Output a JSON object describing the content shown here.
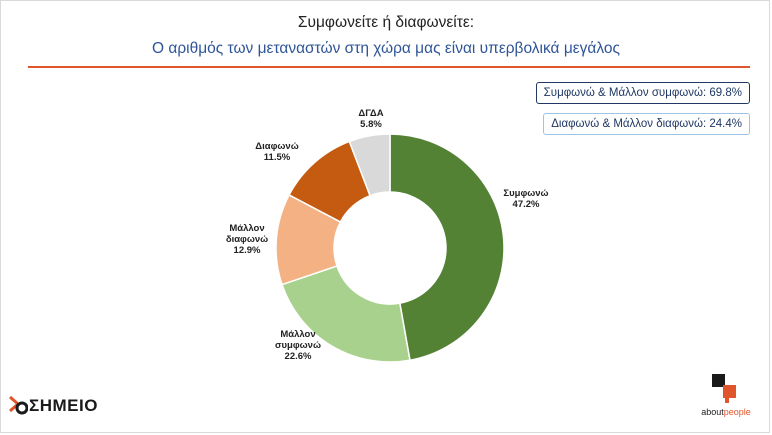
{
  "title": "Συμφωνείτε ή διαφωνείτε:",
  "subtitle": "Ο αριθμός των μεταναστών στη χώρα μας είναι υπερβολικά μεγάλος",
  "summary": {
    "agree": "Συμφωνώ & Μάλλον συμφωνώ: 69.8%",
    "disagree": "Διαφωνώ & Μάλλον διαφωνώ: 24.4%"
  },
  "logos": {
    "left": "ΣΗΜΕΙΟ",
    "right_prefix": "about",
    "right_accent": "people"
  },
  "colors": {
    "accent_rule": "#e0552b",
    "subtitle": "#2f5597"
  },
  "chart_data": {
    "type": "pie",
    "donut": true,
    "title": "Συμφωνείτε ή διαφωνείτε:",
    "subtitle": "Ο αριθμός των μεταναστών στη χώρα μας είναι υπερβολικά μεγάλος",
    "slices": [
      {
        "name": "Συμφωνώ",
        "value": 47.2,
        "label": "47.2%",
        "color": "#548235"
      },
      {
        "name": "Μάλλον συμφωνώ",
        "value": 22.6,
        "label": "22.6%",
        "color": "#a9d18e"
      },
      {
        "name": "Μάλλον διαφωνώ",
        "value": 12.9,
        "label": "12.9%",
        "color": "#f4b183"
      },
      {
        "name": "Διαφωνώ",
        "value": 11.5,
        "label": "11.5%",
        "color": "#c55a11"
      },
      {
        "name": "ΔΓΔΑ",
        "value": 5.8,
        "label": "5.8%",
        "color": "#d9d9d9"
      }
    ]
  }
}
